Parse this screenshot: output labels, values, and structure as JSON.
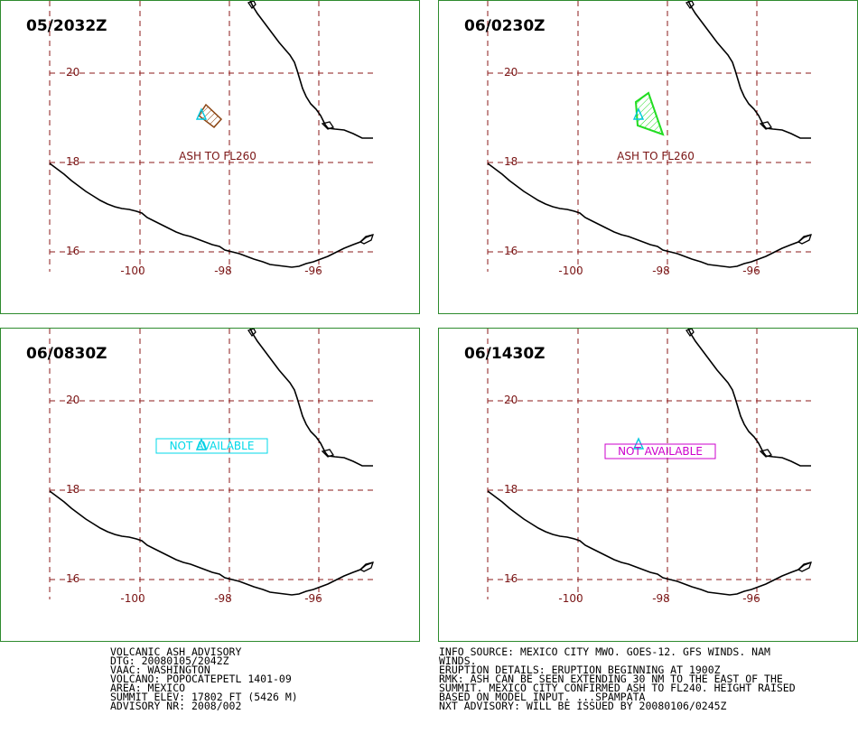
{
  "panels": [
    {
      "time": "05/2032Z",
      "ash_label": "ASH TO FL260",
      "status": "",
      "status_color": "",
      "polygon_color": "#8b4513"
    },
    {
      "time": "06/0230Z",
      "ash_label": "ASH TO FL260",
      "status": "",
      "status_color": "",
      "polygon_color": "#22dd22"
    },
    {
      "time": "06/0830Z",
      "ash_label": "",
      "status": "NOT AVAILABLE",
      "status_color": "#00d8e8",
      "polygon_color": ""
    },
    {
      "time": "06/1430Z",
      "ash_label": "",
      "status": "NOT AVAILABLE",
      "status_color": "#cc00cc",
      "polygon_color": ""
    }
  ],
  "map": {
    "lat_labels": [
      "20",
      "18",
      "16"
    ],
    "lon_labels": [
      "-100",
      "-98",
      "-96"
    ],
    "grid_color": "#8b1a1a",
    "label_color": "#7a1515",
    "ash_label_color": "#7a007a",
    "volcano_color": "#00c8e0"
  },
  "advisory_left": [
    "VOLCANIC ASH ADVISORY",
    "DTG: 20080105/2042Z",
    "VAAC: WASHINGTON",
    "VOLCANO: POPOCATEPETL 1401-09",
    "AREA: MEXICO",
    "SUMMIT ELEV: 17802 FT (5426 M)",
    "ADVISORY NR: 2008/002"
  ],
  "advisory_right": [
    "INFO SOURCE: MEXICO CITY MWO. GOES-12. GFS WINDS. NAM",
    "WINDS.",
    "ERUPTION DETAILS: ERUPTION BEGINNING AT 1900Z",
    "RMK: ASH CAN BE SEEN EXTENDING 30 NM TO THE EAST OF THE",
    "SUMMIT. MEXICO CITY CONFIRMED ASH TO FL240. HEIGHT RAISED",
    "BASED ON MODEL INPUT. ...SPAMPATA",
    "NXT ADVISORY: WILL BE ISSUED BY 20080106/0245Z"
  ]
}
